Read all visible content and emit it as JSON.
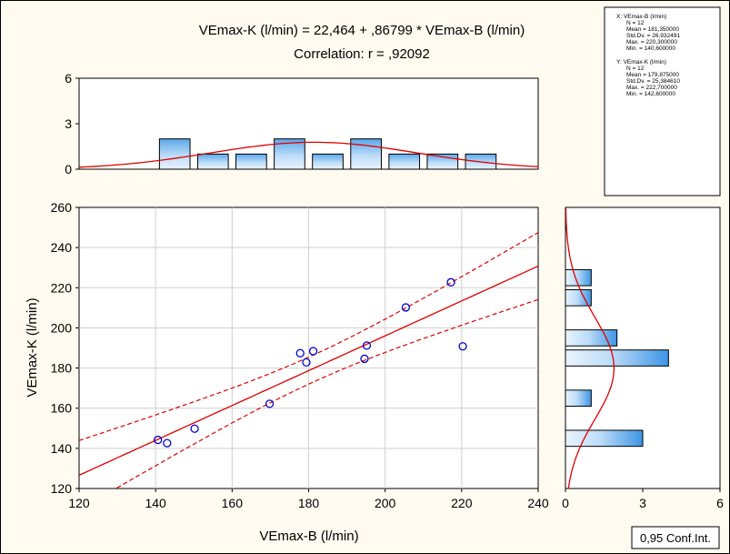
{
  "chart_data": {
    "type": "scatter",
    "title": "VEmax-K (l/min) = 22,464 + ,86799 * VEmax-B (l/min)",
    "subtitle": "Correlation: r = ,92092",
    "xlabel": "VEmax-B (l/min)",
    "ylabel": "VEmax-K (l/min)",
    "xlim": [
      120,
      240
    ],
    "ylim": [
      120,
      260
    ],
    "x_ticks": [
      "120",
      "140",
      "160",
      "180",
      "200",
      "220",
      "240"
    ],
    "y_ticks": [
      "120",
      "140",
      "160",
      "180",
      "200",
      "220",
      "240",
      "260"
    ],
    "grid": true,
    "points": [
      {
        "x": 140.6,
        "y": 144.2
      },
      {
        "x": 143.0,
        "y": 142.6
      },
      {
        "x": 150.2,
        "y": 149.8
      },
      {
        "x": 169.8,
        "y": 162.2
      },
      {
        "x": 177.8,
        "y": 187.4
      },
      {
        "x": 179.4,
        "y": 182.8
      },
      {
        "x": 181.2,
        "y": 188.4
      },
      {
        "x": 194.6,
        "y": 184.6
      },
      {
        "x": 195.2,
        "y": 191.2
      },
      {
        "x": 205.4,
        "y": 210.2
      },
      {
        "x": 217.2,
        "y": 222.7
      },
      {
        "x": 220.3,
        "y": 190.8
      }
    ],
    "regression": {
      "intercept": 22.464,
      "slope": 0.86799
    },
    "confidence_band": "0,95 Conf.Int.",
    "point_color": "#0000cc",
    "line_color": "#e00000",
    "histogram_x": {
      "ylim": [
        0,
        6
      ],
      "y_ticks": [
        "0",
        "3",
        "6"
      ],
      "bins": [
        {
          "from": 140,
          "to": 150,
          "count": 2
        },
        {
          "from": 150,
          "to": 160,
          "count": 1
        },
        {
          "from": 160,
          "to": 170,
          "count": 1
        },
        {
          "from": 170,
          "to": 180,
          "count": 2
        },
        {
          "from": 180,
          "to": 190,
          "count": 1
        },
        {
          "from": 190,
          "to": 200,
          "count": 2
        },
        {
          "from": 200,
          "to": 210,
          "count": 1
        },
        {
          "from": 210,
          "to": 220,
          "count": 1
        },
        {
          "from": 220,
          "to": 230,
          "count": 1
        }
      ],
      "normal": {
        "mean": 181.35,
        "sd": 26.932491
      }
    },
    "histogram_y": {
      "xlim": [
        0,
        6
      ],
      "x_ticks": [
        "0",
        "3",
        "6"
      ],
      "bins": [
        {
          "from": 140,
          "to": 150,
          "count": 3
        },
        {
          "from": 160,
          "to": 170,
          "count": 1
        },
        {
          "from": 180,
          "to": 190,
          "count": 4
        },
        {
          "from": 190,
          "to": 200,
          "count": 2
        },
        {
          "from": 210,
          "to": 220,
          "count": 1
        },
        {
          "from": 220,
          "to": 230,
          "count": 1
        }
      ],
      "normal": {
        "mean": 179.875,
        "sd": 25.38461
      }
    },
    "stats": {
      "x": [
        "X:  VEmax-B (l/min)",
        "N = 12",
        "Mean = 181,350000",
        "Std.Dv. = 26,932491",
        "Max. = 220,300000",
        "Min. = 140,600000"
      ],
      "y": [
        "Y:  VEmax-K (l/min)",
        "N = 12",
        "Mean = 179,875000",
        "Std.Dv. = 25,384610",
        "Max. = 222,700000",
        "Min. = 142,600000"
      ]
    }
  }
}
